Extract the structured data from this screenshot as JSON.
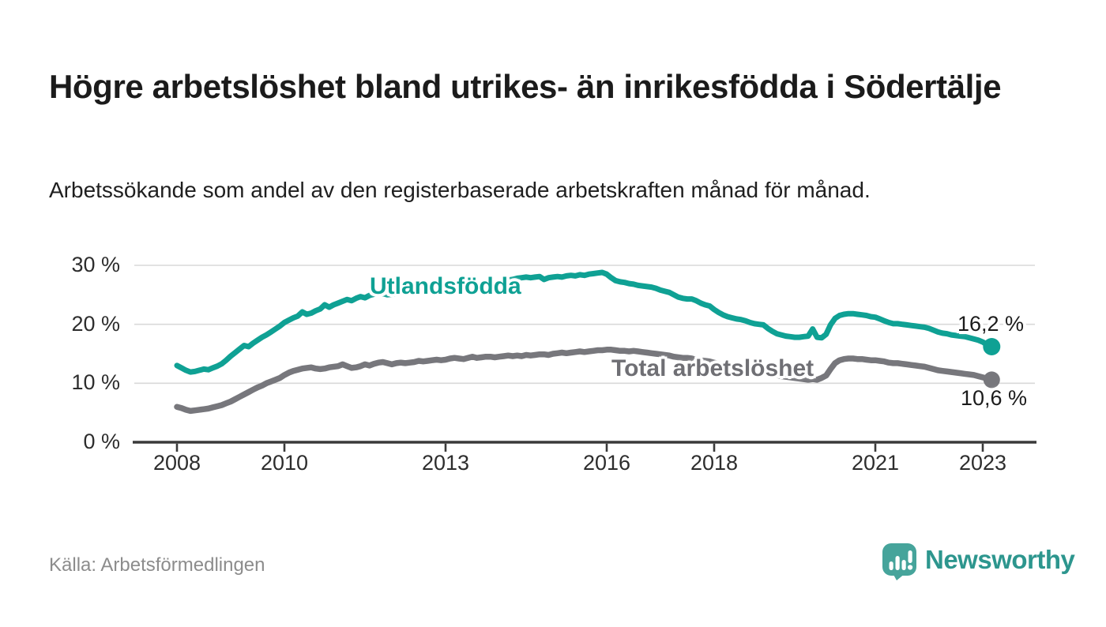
{
  "page": {
    "title": "Högre arbetslöshet bland utrikes- än inrikesfödda i Södertälje",
    "subtitle": "Arbetssökande som andel av den registerbaserade arbetskraften månad för månad.",
    "source": "Källa: Arbetsförmedlingen",
    "logo_text": "Newsworthy"
  },
  "colors": {
    "background": "#ffffff",
    "title_text": "#1b1b1b",
    "axis_text": "#2d2d2d",
    "grid": "#d9d9d9",
    "axis_line": "#3a3a3a",
    "value_text": "#1b1b1b",
    "source_text": "#8c8c8c",
    "logo_bubble": "#46a49b",
    "logo_wordmark": "#2d968e"
  },
  "chart_data": {
    "type": "line",
    "title": "Högre arbetslöshet bland utrikes- än inrikesfödda i Södertälje",
    "subtitle": "Arbetssökande som andel av den registerbaserade arbetskraften månad för månad.",
    "source": "Källa: Arbetsförmedlingen",
    "x_unit": "month",
    "x_start": "2008-01",
    "x_end": "2023-03",
    "ylim": [
      0,
      30
    ],
    "grid": "horizontal",
    "legend_position": "inline-labels",
    "y_axis": {
      "ticks": [
        {
          "value": 30,
          "label": "30 %"
        },
        {
          "value": 20,
          "label": "20 %"
        },
        {
          "value": 10,
          "label": "10 %"
        },
        {
          "value": 0,
          "label": "0 %"
        }
      ]
    },
    "x_axis": {
      "ticks": [
        {
          "year": 2008,
          "label": "2008"
        },
        {
          "year": 2010,
          "label": "2010"
        },
        {
          "year": 2013,
          "label": "2013"
        },
        {
          "year": 2016,
          "label": "2016"
        },
        {
          "year": 2018,
          "label": "2018"
        },
        {
          "year": 2021,
          "label": "2021"
        },
        {
          "year": 2023,
          "label": "2023"
        }
      ]
    },
    "series": [
      {
        "name": "Utlandsfödda",
        "color": "#0fa194",
        "label_color": "#0fa194",
        "end_label": "16,2 %",
        "last_value": 16.2,
        "values": [
          13.0,
          12.6,
          12.2,
          11.9,
          12.0,
          12.2,
          12.4,
          12.3,
          12.6,
          12.9,
          13.3,
          13.9,
          14.6,
          15.2,
          15.8,
          16.4,
          16.2,
          16.8,
          17.3,
          17.8,
          18.2,
          18.7,
          19.2,
          19.7,
          20.3,
          20.7,
          21.1,
          21.4,
          22.1,
          21.7,
          21.9,
          22.3,
          22.6,
          23.3,
          22.9,
          23.3,
          23.6,
          23.9,
          24.2,
          24.0,
          24.4,
          24.7,
          24.5,
          24.9,
          25.1,
          25.3,
          25.2,
          25.0,
          25.1,
          25.3,
          25.4,
          25.3,
          25.5,
          25.6,
          25.8,
          25.7,
          25.8,
          25.9,
          26.0,
          25.9,
          26.0,
          26.1,
          26.2,
          26.3,
          26.4,
          26.5,
          26.6,
          26.5,
          26.7,
          26.8,
          26.9,
          27.0,
          27.1,
          27.3,
          27.5,
          27.6,
          27.8,
          27.9,
          28.0,
          27.9,
          28.0,
          28.1,
          27.6,
          27.9,
          28.0,
          28.1,
          28.0,
          28.2,
          28.3,
          28.2,
          28.4,
          28.3,
          28.5,
          28.6,
          28.7,
          28.8,
          28.5,
          27.9,
          27.4,
          27.2,
          27.1,
          26.9,
          26.8,
          26.6,
          26.5,
          26.4,
          26.3,
          26.1,
          25.8,
          25.6,
          25.4,
          25.0,
          24.6,
          24.4,
          24.3,
          24.3,
          24.0,
          23.6,
          23.3,
          23.1,
          22.5,
          22.0,
          21.6,
          21.3,
          21.1,
          20.9,
          20.8,
          20.6,
          20.3,
          20.1,
          20.0,
          19.9,
          19.3,
          18.8,
          18.4,
          18.2,
          18.0,
          17.9,
          17.8,
          17.8,
          17.9,
          18.0,
          19.2,
          17.8,
          17.7,
          18.3,
          19.9,
          21.0,
          21.5,
          21.7,
          21.8,
          21.8,
          21.7,
          21.6,
          21.5,
          21.3,
          21.2,
          20.9,
          20.6,
          20.3,
          20.1,
          20.1,
          20.0,
          19.9,
          19.8,
          19.7,
          19.6,
          19.5,
          19.3,
          19.0,
          18.7,
          18.5,
          18.4,
          18.2,
          18.1,
          18.0,
          17.9,
          17.7,
          17.5,
          17.3,
          17.0,
          16.5,
          16.2
        ]
      },
      {
        "name": "Total arbetslöshet",
        "color": "#77777c",
        "label_color": "#6f6f74",
        "end_label": "10,6 %",
        "last_value": 10.6,
        "values": [
          6.0,
          5.8,
          5.5,
          5.3,
          5.4,
          5.5,
          5.6,
          5.7,
          5.9,
          6.1,
          6.3,
          6.6,
          6.9,
          7.3,
          7.7,
          8.1,
          8.5,
          8.9,
          9.3,
          9.6,
          10.0,
          10.3,
          10.6,
          10.9,
          11.4,
          11.8,
          12.1,
          12.3,
          12.5,
          12.6,
          12.7,
          12.5,
          12.4,
          12.5,
          12.7,
          12.8,
          12.9,
          13.2,
          12.9,
          12.6,
          12.7,
          12.9,
          13.2,
          13.0,
          13.3,
          13.5,
          13.6,
          13.4,
          13.2,
          13.4,
          13.5,
          13.4,
          13.5,
          13.6,
          13.8,
          13.7,
          13.8,
          13.9,
          14.0,
          13.9,
          14.0,
          14.2,
          14.3,
          14.2,
          14.1,
          14.3,
          14.5,
          14.3,
          14.4,
          14.5,
          14.5,
          14.4,
          14.5,
          14.6,
          14.7,
          14.6,
          14.7,
          14.6,
          14.8,
          14.7,
          14.8,
          14.9,
          14.9,
          14.8,
          15.0,
          15.1,
          15.2,
          15.1,
          15.2,
          15.3,
          15.4,
          15.3,
          15.4,
          15.5,
          15.6,
          15.6,
          15.7,
          15.7,
          15.6,
          15.5,
          15.5,
          15.4,
          15.5,
          15.4,
          15.3,
          15.2,
          15.1,
          15.0,
          14.9,
          14.8,
          14.7,
          14.5,
          14.4,
          14.3,
          14.3,
          14.2,
          14.0,
          13.9,
          13.8,
          13.7,
          13.5,
          13.3,
          13.1,
          12.9,
          12.8,
          12.7,
          12.6,
          12.5,
          12.3,
          12.2,
          12.1,
          12.0,
          11.8,
          11.6,
          11.4,
          11.2,
          11.1,
          11.0,
          10.9,
          10.8,
          10.7,
          10.6,
          10.7,
          10.6,
          10.9,
          11.3,
          12.4,
          13.4,
          13.9,
          14.1,
          14.2,
          14.2,
          14.1,
          14.1,
          14.0,
          13.9,
          13.9,
          13.8,
          13.7,
          13.5,
          13.4,
          13.4,
          13.3,
          13.2,
          13.1,
          13.0,
          12.9,
          12.8,
          12.6,
          12.4,
          12.2,
          12.1,
          12.0,
          11.9,
          11.8,
          11.7,
          11.6,
          11.5,
          11.4,
          11.2,
          11.0,
          10.8,
          10.6
        ]
      }
    ]
  }
}
